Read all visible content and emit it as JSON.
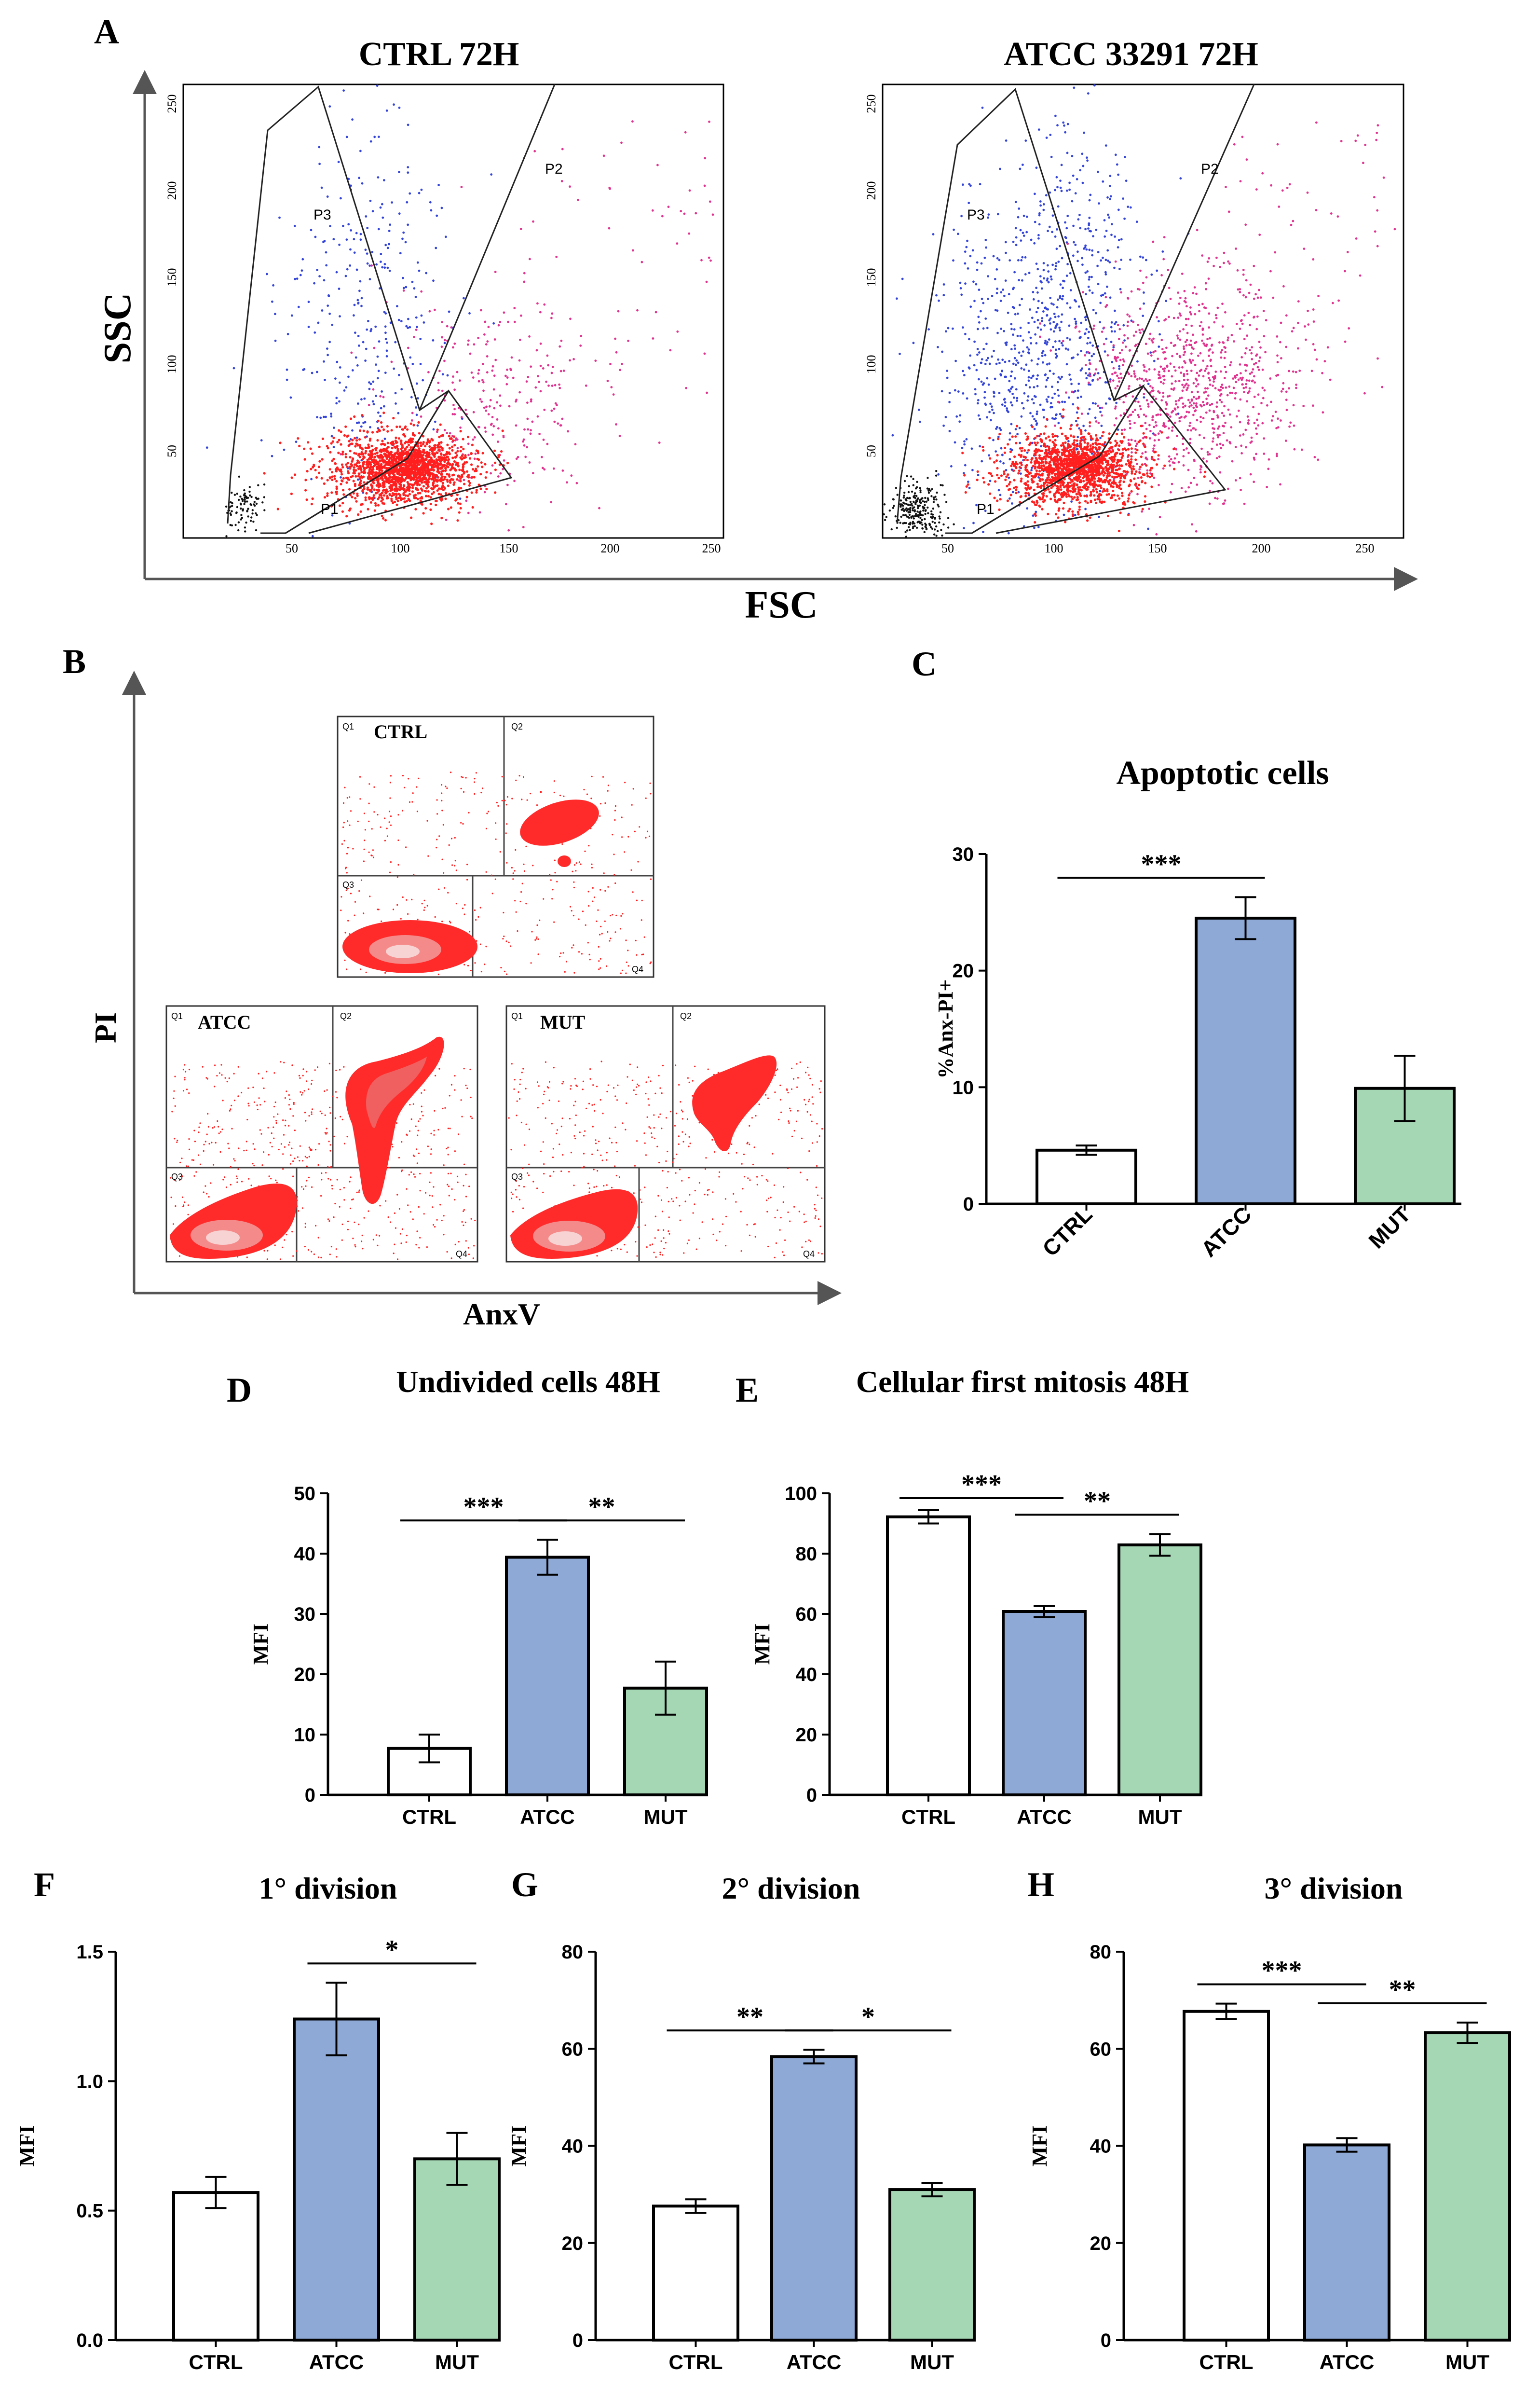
{
  "colors": {
    "ctrl": "#ffffff",
    "atcc": "#8ea9d6",
    "mut": "#a6d7b5",
    "axis": "#000000",
    "red": "#ff1f1f",
    "blue": "#3344d8",
    "magenta": "#e0338f",
    "black": "#111111",
    "gate": "#333333"
  },
  "panel_letters": {
    "A": "A",
    "B": "B",
    "C": "C",
    "D": "D",
    "E": "E",
    "F": "F",
    "G": "G",
    "H": "H"
  },
  "panel_a": {
    "xlabel": "FSC",
    "ylabel": "SSC",
    "plots": [
      {
        "title": "CTRL 72H",
        "gates": [
          "P1",
          "P2",
          "P3"
        ],
        "xticks": [
          "50",
          "100",
          "150",
          "200",
          "250"
        ],
        "yticks": [
          "50",
          "100",
          "150",
          "200",
          "250"
        ]
      },
      {
        "title": "ATCC 33291 72H",
        "gates": [
          "P1",
          "P2",
          "P3"
        ],
        "xticks": [
          "50",
          "100",
          "150",
          "200",
          "250"
        ],
        "yticks": [
          "50",
          "100",
          "150",
          "200",
          "250"
        ]
      }
    ]
  },
  "panel_b": {
    "xlabel": "AnxV",
    "ylabel": "PI",
    "plots": [
      {
        "title": "CTRL",
        "quadrants": [
          "Q1",
          "Q2",
          "Q3",
          "Q4"
        ]
      },
      {
        "title": "ATCC",
        "quadrants": [
          "Q1",
          "Q2",
          "Q3",
          "Q4"
        ]
      },
      {
        "title": "MUT",
        "quadrants": [
          "Q1",
          "Q2",
          "Q3",
          "Q4"
        ]
      }
    ]
  },
  "chart_data": [
    {
      "id": "C",
      "type": "bar",
      "title": "Apoptotic cells",
      "ylabel": "%Anx-PI+",
      "categories": [
        "CTRL",
        "ATCC",
        "MUT"
      ],
      "values": [
        4.6,
        24.5,
        9.9
      ],
      "errors": [
        0.4,
        1.8,
        2.8
      ],
      "ylim": [
        0,
        30
      ],
      "yticks": [
        0,
        10,
        20,
        30
      ],
      "ytick_labels": [
        "0",
        "10",
        "20",
        "30"
      ],
      "significance": [
        {
          "from": 0,
          "to": 1,
          "label": "***"
        }
      ]
    },
    {
      "id": "D",
      "type": "bar",
      "title": "Undivided cells 48H",
      "ylabel": "MFI",
      "categories": [
        "CTRL",
        "ATCC",
        "MUT"
      ],
      "values": [
        7.7,
        39.4,
        17.7
      ],
      "errors": [
        2.3,
        2.9,
        4.4
      ],
      "ylim": [
        0,
        50
      ],
      "yticks": [
        0,
        10,
        20,
        30,
        40,
        50
      ],
      "ytick_labels": [
        "0",
        "10",
        "20",
        "30",
        "40",
        "50"
      ],
      "significance": [
        {
          "from": 0,
          "to": 1,
          "label": "***"
        },
        {
          "from": 1,
          "to": 2,
          "label": "**"
        }
      ]
    },
    {
      "id": "E",
      "type": "bar",
      "title": "Cellular first mitosis 48H",
      "ylabel": "MFI",
      "categories": [
        "CTRL",
        "ATCC",
        "MUT"
      ],
      "values": [
        92.2,
        60.8,
        82.9
      ],
      "errors": [
        2.2,
        1.8,
        3.6
      ],
      "ylim": [
        0,
        100
      ],
      "yticks": [
        0,
        20,
        40,
        60,
        80,
        100
      ],
      "ytick_labels": [
        "0",
        "20",
        "40",
        "60",
        "80",
        "100"
      ],
      "significance": [
        {
          "from": 0,
          "to": 1,
          "label": "***"
        },
        {
          "from": 1,
          "to": 2,
          "label": "**"
        }
      ]
    },
    {
      "id": "F",
      "type": "bar",
      "title": "1° division",
      "ylabel": "MFI",
      "categories": [
        "CTRL",
        "ATCC",
        "MUT"
      ],
      "values": [
        0.57,
        1.24,
        0.7
      ],
      "errors": [
        0.06,
        0.14,
        0.1
      ],
      "ylim": [
        0,
        1.5
      ],
      "yticks": [
        0,
        0.5,
        1.0,
        1.5
      ],
      "ytick_labels": [
        "0.0",
        "0.5",
        "1.0",
        "1.5"
      ],
      "significance": [
        {
          "from": 1,
          "to": 2,
          "label": "*"
        }
      ]
    },
    {
      "id": "G",
      "type": "bar",
      "title": "2° division",
      "ylabel": "MFI",
      "categories": [
        "CTRL",
        "ATCC",
        "MUT"
      ],
      "values": [
        27.6,
        58.4,
        31.0
      ],
      "errors": [
        1.4,
        1.4,
        1.4
      ],
      "ylim": [
        0,
        80
      ],
      "yticks": [
        0,
        20,
        40,
        60,
        80
      ],
      "ytick_labels": [
        "0",
        "20",
        "40",
        "60",
        "80"
      ],
      "significance": [
        {
          "from": 0,
          "to": 1,
          "label": "**"
        },
        {
          "from": 1,
          "to": 2,
          "label": "*"
        }
      ]
    },
    {
      "id": "H",
      "type": "bar",
      "title": "3° division",
      "ylabel": "MFI",
      "categories": [
        "CTRL",
        "ATCC",
        "MUT"
      ],
      "values": [
        67.7,
        40.2,
        63.3
      ],
      "errors": [
        1.6,
        1.4,
        2.1
      ],
      "ylim": [
        0,
        80
      ],
      "yticks": [
        0,
        20,
        40,
        60,
        80
      ],
      "ytick_labels": [
        "0",
        "20",
        "40",
        "60",
        "80"
      ],
      "significance": [
        {
          "from": 0,
          "to": 1,
          "label": "***"
        },
        {
          "from": 1,
          "to": 2,
          "label": "**"
        }
      ]
    }
  ]
}
